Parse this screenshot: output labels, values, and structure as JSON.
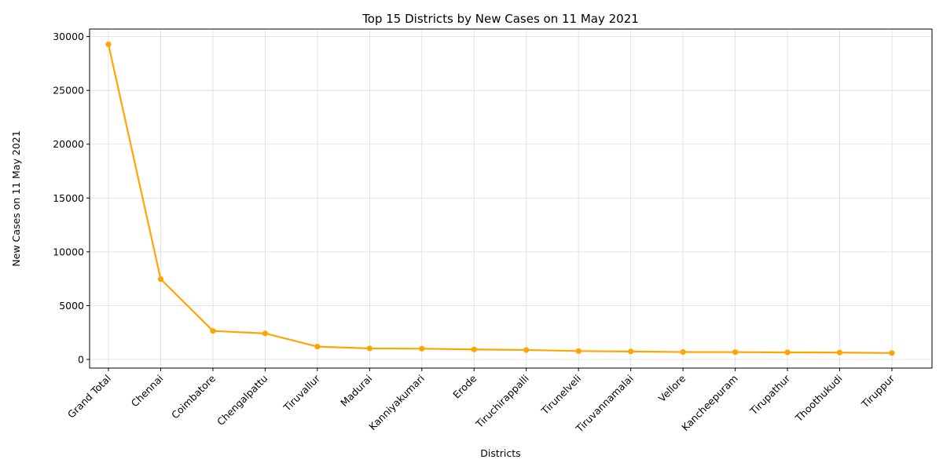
{
  "chart_data": {
    "type": "line",
    "title": "Top 15 Districts by New Cases on 11 May 2021",
    "xlabel": "Districts",
    "ylabel": "New Cases on 11 May 2021",
    "categories": [
      "Grand Total",
      "Chennai",
      "Coimbatore",
      "Chengalpattu",
      "Tiruvallur",
      "Madurai",
      "Kanniyakumari",
      "Erode",
      "Tiruchirappalli",
      "Tirunelveli",
      "Tiruvannamalai",
      "Vellore",
      "Kancheepuram",
      "Tirupathur",
      "Thoothukudi",
      "Tiruppur"
    ],
    "series": [
      {
        "values": [
          29272,
          7466,
          2650,
          2419,
          1195,
          1023,
          1000,
          930,
          880,
          780,
          740,
          690,
          680,
          660,
          640,
          600
        ]
      }
    ],
    "ylim": [
      -800,
      30700
    ],
    "yticks": [
      0,
      5000,
      10000,
      15000,
      20000,
      25000,
      30000
    ],
    "grid": true,
    "line_color": "#FFA500",
    "marker": "circle",
    "legend": "none"
  }
}
